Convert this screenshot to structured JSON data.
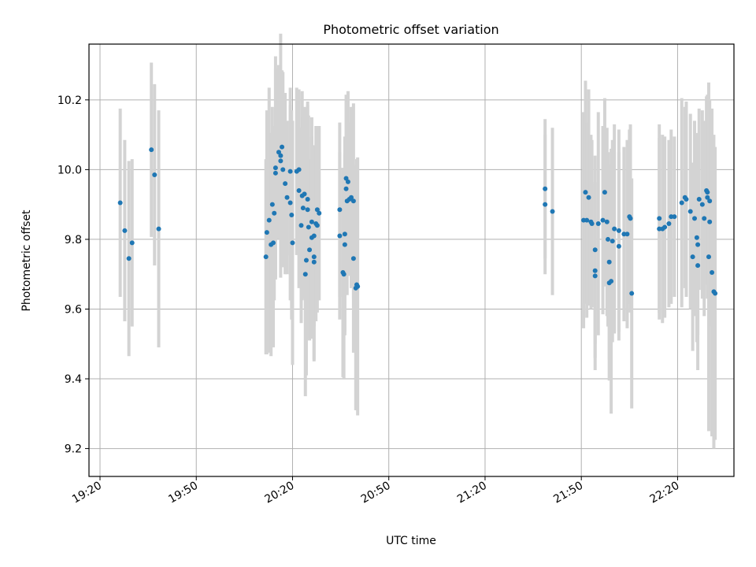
{
  "chart_data": {
    "type": "scatter",
    "title": "Photometric offset variation",
    "xlabel": "UTC time",
    "ylabel": "Photometric offset",
    "x_ticks": [
      "19:20",
      "19:50",
      "20:20",
      "20:50",
      "21:20",
      "21:50",
      "22:20"
    ],
    "y_ticks": [
      9.2,
      9.4,
      9.6,
      9.8,
      10.0,
      10.2
    ],
    "xlim": [
      "19:20",
      "22:41"
    ],
    "ylim": [
      9.12,
      10.36
    ],
    "grid": true,
    "point_color": "#1f77b4",
    "errorbar_color": "#d3d3d3",
    "points": [
      {
        "t": "19:26",
        "y": 9.905,
        "e": 0.27
      },
      {
        "t": "19:28",
        "y": 9.825,
        "e": 0.26
      },
      {
        "t": "19:29",
        "y": 9.745,
        "e": 0.28
      },
      {
        "t": "19:30",
        "y": 9.79,
        "e": 0.24
      },
      {
        "t": "19:36",
        "y": 10.057,
        "e": 0.25
      },
      {
        "t": "19:37",
        "y": 9.985,
        "e": 0.26
      },
      {
        "t": "19:38",
        "y": 9.83,
        "e": 0.34
      },
      {
        "t": "20:12",
        "y": 9.75,
        "e": 0.28
      },
      {
        "t": "20:12",
        "y": 9.82,
        "e": 0.35
      },
      {
        "t": "20:13",
        "y": 9.855,
        "e": 0.38
      },
      {
        "t": "20:13",
        "y": 9.785,
        "e": 0.32
      },
      {
        "t": "20:14",
        "y": 9.79,
        "e": 0.3
      },
      {
        "t": "20:14",
        "y": 9.875,
        "e": 0.25
      },
      {
        "t": "20:14",
        "y": 9.9,
        "e": 0.28
      },
      {
        "t": "20:15",
        "y": 9.99,
        "e": 0.3
      },
      {
        "t": "20:15",
        "y": 10.005,
        "e": 0.32
      },
      {
        "t": "20:16",
        "y": 10.04,
        "e": 0.35
      },
      {
        "t": "20:16",
        "y": 10.025,
        "e": 0.22
      },
      {
        "t": "20:16",
        "y": 10.05,
        "e": 0.25
      },
      {
        "t": "20:17",
        "y": 10.065,
        "e": 0.22
      },
      {
        "t": "20:17",
        "y": 10.0,
        "e": 0.28
      },
      {
        "t": "20:18",
        "y": 9.96,
        "e": 0.26
      },
      {
        "t": "20:18",
        "y": 9.92,
        "e": 0.22
      },
      {
        "t": "20:19",
        "y": 9.905,
        "e": 0.28
      },
      {
        "t": "20:19",
        "y": 9.995,
        "e": 0.24
      },
      {
        "t": "20:20",
        "y": 9.87,
        "e": 0.3
      },
      {
        "t": "20:20",
        "y": 9.79,
        "e": 0.35
      },
      {
        "t": "20:21",
        "y": 9.995,
        "e": 0.24
      },
      {
        "t": "20:22",
        "y": 10.0,
        "e": 0.23
      },
      {
        "t": "20:22",
        "y": 9.94,
        "e": 0.28
      },
      {
        "t": "20:23",
        "y": 9.925,
        "e": 0.3
      },
      {
        "t": "20:23",
        "y": 9.89,
        "e": 0.26
      },
      {
        "t": "20:23",
        "y": 9.84,
        "e": 0.28
      },
      {
        "t": "20:24",
        "y": 9.74,
        "e": 0.33
      },
      {
        "t": "20:24",
        "y": 9.7,
        "e": 0.35
      },
      {
        "t": "20:24",
        "y": 9.93,
        "e": 0.25
      },
      {
        "t": "20:25",
        "y": 9.77,
        "e": 0.26
      },
      {
        "t": "20:25",
        "y": 9.885,
        "e": 0.3
      },
      {
        "t": "20:25",
        "y": 9.835,
        "e": 0.32
      },
      {
        "t": "20:25",
        "y": 9.915,
        "e": 0.28
      },
      {
        "t": "20:26",
        "y": 9.85,
        "e": 0.3
      },
      {
        "t": "20:26",
        "y": 9.805,
        "e": 0.29
      },
      {
        "t": "20:27",
        "y": 9.75,
        "e": 0.3
      },
      {
        "t": "20:27",
        "y": 9.735,
        "e": 0.28
      },
      {
        "t": "20:27",
        "y": 9.81,
        "e": 0.26
      },
      {
        "t": "20:27",
        "y": 9.845,
        "e": 0.28
      },
      {
        "t": "20:28",
        "y": 9.875,
        "e": 0.25
      },
      {
        "t": "20:28",
        "y": 9.885,
        "e": 0.24
      },
      {
        "t": "20:28",
        "y": 9.84,
        "e": 0.25
      },
      {
        "t": "20:35",
        "y": 9.885,
        "e": 0.25
      },
      {
        "t": "20:35",
        "y": 9.81,
        "e": 0.24
      },
      {
        "t": "20:36",
        "y": 9.785,
        "e": 0.26
      },
      {
        "t": "20:36",
        "y": 9.705,
        "e": 0.3
      },
      {
        "t": "20:36",
        "y": 9.7,
        "e": 0.3
      },
      {
        "t": "20:36",
        "y": 9.815,
        "e": 0.28
      },
      {
        "t": "20:37",
        "y": 9.91,
        "e": 0.27
      },
      {
        "t": "20:37",
        "y": 9.975,
        "e": 0.24
      },
      {
        "t": "20:37",
        "y": 9.965,
        "e": 0.26
      },
      {
        "t": "20:37",
        "y": 9.945,
        "e": 0.25
      },
      {
        "t": "20:38",
        "y": 9.915,
        "e": 0.22
      },
      {
        "t": "20:38",
        "y": 9.92,
        "e": 0.26
      },
      {
        "t": "20:39",
        "y": 9.91,
        "e": 0.28
      },
      {
        "t": "20:39",
        "y": 9.745,
        "e": 0.27
      },
      {
        "t": "20:40",
        "y": 9.665,
        "e": 0.37
      },
      {
        "t": "20:40",
        "y": 9.66,
        "e": 0.35
      },
      {
        "t": "20:40",
        "y": 9.67,
        "e": 0.36
      },
      {
        "t": "21:39",
        "y": 9.945,
        "e": 0.2
      },
      {
        "t": "21:39",
        "y": 9.9,
        "e": 0.2
      },
      {
        "t": "21:41",
        "y": 9.88,
        "e": 0.24
      },
      {
        "t": "21:51",
        "y": 9.855,
        "e": 0.31
      },
      {
        "t": "21:51",
        "y": 9.935,
        "e": 0.32
      },
      {
        "t": "21:52",
        "y": 9.92,
        "e": 0.31
      },
      {
        "t": "21:52",
        "y": 9.855,
        "e": 0.28
      },
      {
        "t": "21:53",
        "y": 9.845,
        "e": 0.24
      },
      {
        "t": "21:53",
        "y": 9.85,
        "e": 0.25
      },
      {
        "t": "21:54",
        "y": 9.695,
        "e": 0.27
      },
      {
        "t": "21:54",
        "y": 9.71,
        "e": 0.25
      },
      {
        "t": "21:54",
        "y": 9.77,
        "e": 0.27
      },
      {
        "t": "21:55",
        "y": 9.845,
        "e": 0.32
      },
      {
        "t": "21:57",
        "y": 9.935,
        "e": 0.27
      },
      {
        "t": "21:57",
        "y": 9.855,
        "e": 0.27
      },
      {
        "t": "21:58",
        "y": 9.85,
        "e": 0.27
      },
      {
        "t": "21:58",
        "y": 9.8,
        "e": 0.25
      },
      {
        "t": "21:59",
        "y": 9.735,
        "e": 0.28
      },
      {
        "t": "21:59",
        "y": 9.675,
        "e": 0.28
      },
      {
        "t": "21:59",
        "y": 9.68,
        "e": 0.38
      },
      {
        "t": "22:00",
        "y": 9.795,
        "e": 0.29
      },
      {
        "t": "22:00",
        "y": 9.83,
        "e": 0.3
      },
      {
        "t": "22:02",
        "y": 9.78,
        "e": 0.27
      },
      {
        "t": "22:02",
        "y": 9.825,
        "e": 0.29
      },
      {
        "t": "22:03",
        "y": 9.815,
        "e": 0.25
      },
      {
        "t": "22:04",
        "y": 9.815,
        "e": 0.27
      },
      {
        "t": "22:05",
        "y": 9.86,
        "e": 0.27
      },
      {
        "t": "22:05",
        "y": 9.865,
        "e": 0.25
      },
      {
        "t": "22:06",
        "y": 9.645,
        "e": 0.33
      },
      {
        "t": "22:14",
        "y": 9.86,
        "e": 0.27
      },
      {
        "t": "22:14",
        "y": 9.83,
        "e": 0.26
      },
      {
        "t": "22:15",
        "y": 9.83,
        "e": 0.27
      },
      {
        "t": "22:16",
        "y": 9.835,
        "e": 0.26
      },
      {
        "t": "22:17",
        "y": 9.845,
        "e": 0.24
      },
      {
        "t": "22:18",
        "y": 9.865,
        "e": 0.25
      },
      {
        "t": "22:19",
        "y": 9.865,
        "e": 0.23
      },
      {
        "t": "22:21",
        "y": 9.905,
        "e": 0.3
      },
      {
        "t": "22:22",
        "y": 9.92,
        "e": 0.26
      },
      {
        "t": "22:23",
        "y": 9.915,
        "e": 0.28
      },
      {
        "t": "22:24",
        "y": 9.88,
        "e": 0.28
      },
      {
        "t": "22:25",
        "y": 9.86,
        "e": 0.28
      },
      {
        "t": "22:25",
        "y": 9.75,
        "e": 0.27
      },
      {
        "t": "22:26",
        "y": 9.785,
        "e": 0.26
      },
      {
        "t": "22:26",
        "y": 9.805,
        "e": 0.3
      },
      {
        "t": "22:26",
        "y": 9.725,
        "e": 0.3
      },
      {
        "t": "22:27",
        "y": 9.915,
        "e": 0.26
      },
      {
        "t": "22:28",
        "y": 9.9,
        "e": 0.27
      },
      {
        "t": "22:28",
        "y": 9.86,
        "e": 0.28
      },
      {
        "t": "22:29",
        "y": 9.94,
        "e": 0.27
      },
      {
        "t": "22:29",
        "y": 9.935,
        "e": 0.28
      },
      {
        "t": "22:29",
        "y": 9.92,
        "e": 0.29
      },
      {
        "t": "22:30",
        "y": 9.91,
        "e": 0.29
      },
      {
        "t": "22:30",
        "y": 9.85,
        "e": 0.3
      },
      {
        "t": "22:30",
        "y": 9.75,
        "e": 0.5
      },
      {
        "t": "22:31",
        "y": 9.705,
        "e": 0.47
      },
      {
        "t": "22:31",
        "y": 9.65,
        "e": 0.45
      },
      {
        "t": "22:32",
        "y": 9.645,
        "e": 0.42
      }
    ]
  }
}
